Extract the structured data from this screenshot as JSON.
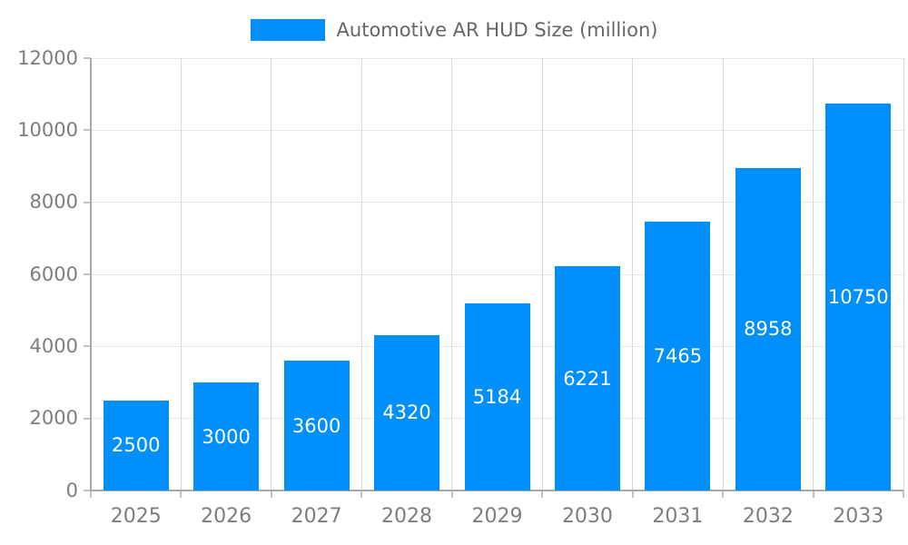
{
  "legend": {
    "label": "Automotive AR HUD Size (million)",
    "swatch_color": "#008FFB"
  },
  "chart_data": {
    "type": "bar",
    "title": "Automotive AR HUD Size (million)",
    "xlabel": "",
    "ylabel": "",
    "categories": [
      "2025",
      "2026",
      "2027",
      "2028",
      "2029",
      "2030",
      "2031",
      "2032",
      "2033"
    ],
    "values": [
      2500,
      3000,
      3600,
      4320,
      5184,
      6221,
      7465,
      8958,
      10750
    ],
    "yticks": [
      0,
      2000,
      4000,
      6000,
      8000,
      10000,
      12000
    ],
    "ylim": [
      0,
      12000
    ],
    "grid": true,
    "legend_position": "top",
    "bar_color": "#008FFB",
    "bar_label_color": "#FFFFFF"
  },
  "colors": {
    "axis_text": "#7d7d7d",
    "legend_text": "#666666",
    "grid_h": "#e8e8e8",
    "grid_v": "#d9d9d9",
    "axis_line": "#a9a9a9",
    "tick": "#c2c2c2",
    "background": "#ffffff"
  }
}
